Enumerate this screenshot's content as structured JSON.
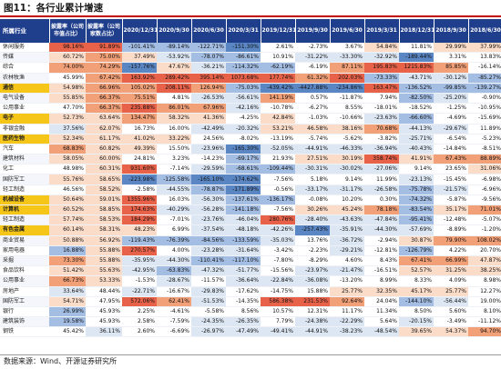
{
  "title": "图11：各行业累计增速",
  "source": "数据来源：Wind、开源证券研究所",
  "headers": [
    "所属行业",
    "披露率（公司市值占比）",
    "披露率（公司家数占比）",
    "2020/12/31",
    "2020/9/30",
    "2020/6/30",
    "2020/3/31",
    "2019/12/31",
    "2019/9/30",
    "2019/6/30",
    "2019/3/31",
    "2018/12/31",
    "2018/9/30",
    "2018/6/30"
  ],
  "colors": {
    "neg_max": "#5b86c4",
    "neg_mid": "#a3bde3",
    "neg_light": "#dde7f4",
    "pos_light": "#fbdcc9",
    "pos_mid": "#f2a078",
    "pos_max": "#e8624a",
    "highlight": "#f5c518",
    "header": "#1f3e8c"
  },
  "rows": [
    {
      "ind": "休闲服务",
      "hl": false,
      "c": [
        "98.16%",
        "91.89%",
        "-101.41%",
        "-89.14%",
        "-122.71%",
        "-151.30%",
        "2.61%",
        "-2.73%",
        "3.67%",
        "54.84%",
        "11.81%",
        "29.99%",
        "37.99%"
      ]
    },
    {
      "ind": "传媒",
      "hl": false,
      "c": [
        "60.72%",
        "75.00%",
        "37.49%",
        "-53.92%",
        "-78.07%",
        "-86.61%",
        "10.91%",
        "-31.22%",
        "-33.30%",
        "-32.92%",
        "-189.44%",
        "3.31%",
        "13.83%"
      ]
    },
    {
      "ind": "综合",
      "hl": false,
      "c": [
        "74.00%",
        "74.29%",
        "-157.76%",
        "47.67%",
        "-36.21%",
        "-114.32%",
        "-62.19%",
        "-6.19%",
        "87.11%",
        "195.83%",
        "1215.83%",
        "85.85%",
        "-16.14%"
      ]
    },
    {
      "ind": "农林牧渔",
      "hl": false,
      "c": [
        "45.99%",
        "67.42%",
        "163.92%",
        "289.42%",
        "395.14%",
        "1073.68%",
        "177.74%",
        "61.32%",
        "202.03%",
        "-73.33%",
        "-43.71%",
        "-30.12%",
        "-85.27%"
      ]
    },
    {
      "ind": "通信",
      "hl": true,
      "c": [
        "54.98%",
        "66.96%",
        "105.02%",
        "208.11%",
        "126.94%",
        "-75.03%",
        "-439.42%",
        "-4427.88%",
        "-234.86%",
        "163.47%",
        "-136.52%",
        "-99.85%",
        "-139.27%"
      ]
    },
    {
      "ind": "电气设备",
      "hl": false,
      "c": [
        "55.85%",
        "66.37%",
        "75.51%",
        "4.81%",
        "-26.53%",
        "-56.61%",
        "141.19%",
        "0.57%",
        "-11.87%",
        "7.94%",
        "-82.50%",
        "-25.20%",
        "-0.90%"
      ]
    },
    {
      "ind": "公用事业",
      "hl": false,
      "c": [
        "47.70%",
        "66.37%",
        "235.88%",
        "86.01%",
        "67.96%",
        "-42.16%",
        "-10.78%",
        "-6.27%",
        "8.55%",
        "-18.01%",
        "-18.52%",
        "-1.25%",
        "-10.95%"
      ]
    },
    {
      "ind": "电子",
      "hl": true,
      "c": [
        "52.73%",
        "63.64%",
        "134.47%",
        "58.32%",
        "41.36%",
        "-4.25%",
        "42.84%",
        "-1.03%",
        "-10.66%",
        "-23.63%",
        "-66.60%",
        "-4.69%",
        "-15.69%"
      ]
    },
    {
      "ind": "非银金融",
      "hl": false,
      "c": [
        "37.56%",
        "62.07%",
        "16.73%",
        "16.00%",
        "-42.49%",
        "-20.32%",
        "53.21%",
        "46.58%",
        "38.16%",
        "70.68%",
        "-44.13%",
        "-29.67%",
        "11.89%"
      ]
    },
    {
      "ind": "医药生物",
      "hl": true,
      "c": [
        "52.34%",
        "61.17%",
        "41.02%",
        "33.22%",
        "24.56%",
        "-8.02%",
        "-13.19%",
        "-5.74%",
        "-5.62%",
        "-3.82%",
        "-25.71%",
        "-6.54%",
        "-5.23%"
      ]
    },
    {
      "ind": "汽车",
      "hl": false,
      "c": [
        "68.83%",
        "60.82%",
        "49.39%",
        "15.50%",
        "-23.96%",
        "-165.30%",
        "-52.05%",
        "-44.91%",
        "-46.33%",
        "-36.94%",
        "-40.43%",
        "-14.84%",
        "-8.51%"
      ]
    },
    {
      "ind": "建筑材料",
      "hl": false,
      "c": [
        "58.05%",
        "60.00%",
        "24.81%",
        "3.23%",
        "-14.23%",
        "-69.17%",
        "21.93%",
        "27.51%",
        "30.19%",
        "358.74%",
        "41.91%",
        "67.43%",
        "88.89%"
      ]
    },
    {
      "ind": "化工",
      "hl": false,
      "c": [
        "48.98%",
        "60.31%",
        "931.60%",
        "-7.14%",
        "-29.59%",
        "-68.61%",
        "-109.44%",
        "-30.31%",
        "-30.02%",
        "-27.06%",
        "9.14%",
        "23.65%",
        "31.06%"
      ]
    },
    {
      "ind": "国防军工",
      "hl": false,
      "c": [
        "55.76%",
        "58.65%",
        "-223.98%",
        "-125.58%",
        "-165.10%",
        "-174.62%",
        "-7.56%",
        "5.18%",
        "9.14%",
        "11.99%",
        "-23.13%",
        "-15.45%",
        "-6.98%"
      ]
    },
    {
      "ind": "轻工制造",
      "hl": false,
      "c": [
        "46.56%",
        "58.52%",
        "-2.58%",
        "-44.55%",
        "-78.87%",
        "-171.89%",
        "-0.56%",
        "-33.17%",
        "-31.17%",
        "-26.58%",
        "-75.78%",
        "-21.57%",
        "-6.96%"
      ]
    },
    {
      "ind": "机械设备",
      "hl": true,
      "c": [
        "50.64%",
        "59.01%",
        "1355.96%",
        "16.03%",
        "-56.30%",
        "-137.61%",
        "-136.17%",
        "-0.08%",
        "10.20%",
        "0.30%",
        "-74.32%",
        "-5.87%",
        "-9.56%"
      ]
    },
    {
      "ind": "计算机",
      "hl": true,
      "c": [
        "60.52%",
        "58.85%",
        "174.63%",
        "-40.29%",
        "-56.28%",
        "-141.18%",
        "-7.56%",
        "30.26%",
        "45.24%",
        "78.18%",
        "-83.54%",
        "35.17%",
        "71.01%"
      ]
    },
    {
      "ind": "轻工制造",
      "hl": false,
      "c": [
        "57.74%",
        "58.53%",
        "184.29%",
        "-7.01%",
        "-23.76%",
        "-46.04%",
        "280.76%",
        "-28.40%",
        "-43.63%",
        "-47.84%",
        "-95.41%",
        "-12.48%",
        "-5.07%"
      ]
    },
    {
      "ind": "有色金属",
      "hl": true,
      "c": [
        "60.14%",
        "58.31%",
        "48.23%",
        "6.99%",
        "-37.54%",
        "-48.18%",
        "-42.26%",
        "-257.43%",
        "-35.91%",
        "-44.30%",
        "-57.69%",
        "-8.89%",
        "-1.20%"
      ]
    },
    {
      "ind": "商业贸易",
      "hl": false,
      "c": [
        "50.88%",
        "56.92%",
        "-119.43%",
        "-76.39%",
        "-84.56%",
        "-133.59%",
        "-35.03%",
        "13.76%",
        "-36.72%",
        "-2.94%",
        "30.87%",
        "79.90%",
        "108.02%"
      ]
    },
    {
      "ind": "家用电器",
      "hl": false,
      "c": [
        "16.88%",
        "55.88%",
        "270.57%",
        "4.00%",
        "-23.28%",
        "-31.64%",
        "-3.42%",
        "-2.23%",
        "-29.21%",
        "-12.81%",
        "-126.79%",
        "4.22%",
        "20.70%"
      ]
    },
    {
      "ind": "采掘",
      "hl": false,
      "c": [
        "73.30%",
        "55.88%",
        "-35.95%",
        "-44.30%",
        "-110.41%",
        "-117.10%",
        "-7.80%",
        "-8.29%",
        "4.60%",
        "8.43%",
        "67.41%",
        "66.99%",
        "47.87%"
      ]
    },
    {
      "ind": "食品饮料",
      "hl": false,
      "c": [
        "51.42%",
        "55.63%",
        "-42.95%",
        "-63.83%",
        "-47.32%",
        "-51.77%",
        "-15.56%",
        "-23.97%",
        "-21.47%",
        "-16.51%",
        "52.57%",
        "31.25%",
        "38.25%"
      ]
    },
    {
      "ind": "公用事业",
      "hl": false,
      "c": [
        "66.73%",
        "53.33%",
        "-1.53%",
        "-28.67%",
        "-11.57%",
        "-36.64%",
        "-22.84%",
        "-36.08%",
        "-13.20%",
        "8.99%",
        "8.33%",
        "4.09%",
        "8.98%"
      ]
    },
    {
      "ind": "房地产",
      "hl": false,
      "c": [
        "33.64%",
        "48.44%",
        "-22.71%",
        "-16.67%",
        "-29.83%",
        "-17.62%",
        "-14.75%",
        "15.88%",
        "25.77%",
        "32.35%",
        "45.17%",
        "25.77%",
        "12.27%"
      ]
    },
    {
      "ind": "国防军工",
      "hl": false,
      "c": [
        "54.71%",
        "47.95%",
        "572.06%",
        "62.41%",
        "-51.53%",
        "-14.35%",
        "586.38%",
        "231.53%",
        "92.64%",
        "24.04%",
        "-144.10%",
        "-56.44%",
        "19.00%"
      ]
    },
    {
      "ind": "银行",
      "hl": false,
      "c": [
        "26.99%",
        "45.93%",
        "2.25%",
        "-4.61%",
        "-5.58%",
        "8.56%",
        "10.57%",
        "12.31%",
        "11.17%",
        "11.34%",
        "8.50%",
        "5.60%",
        "8.10%"
      ]
    },
    {
      "ind": "建筑装饰",
      "hl": false,
      "c": [
        "19.58%",
        "45.93%",
        "2.58%",
        "-7.59%",
        "-24.35%",
        "-26.35%",
        "7.79%",
        "-24.38%",
        "-22.29%",
        "5.64%",
        "-20.15%",
        "-3.49%",
        "-11.12%"
      ]
    },
    {
      "ind": "钢铁",
      "hl": false,
      "c": [
        "45.42%",
        "36.11%",
        "2.60%",
        "-6.69%",
        "-26.97%",
        "-47.49%",
        "-49.41%",
        "-44.91%",
        "-38.23%",
        "-48.54%",
        "39.65%",
        "54.37%",
        "94.70%"
      ]
    }
  ]
}
